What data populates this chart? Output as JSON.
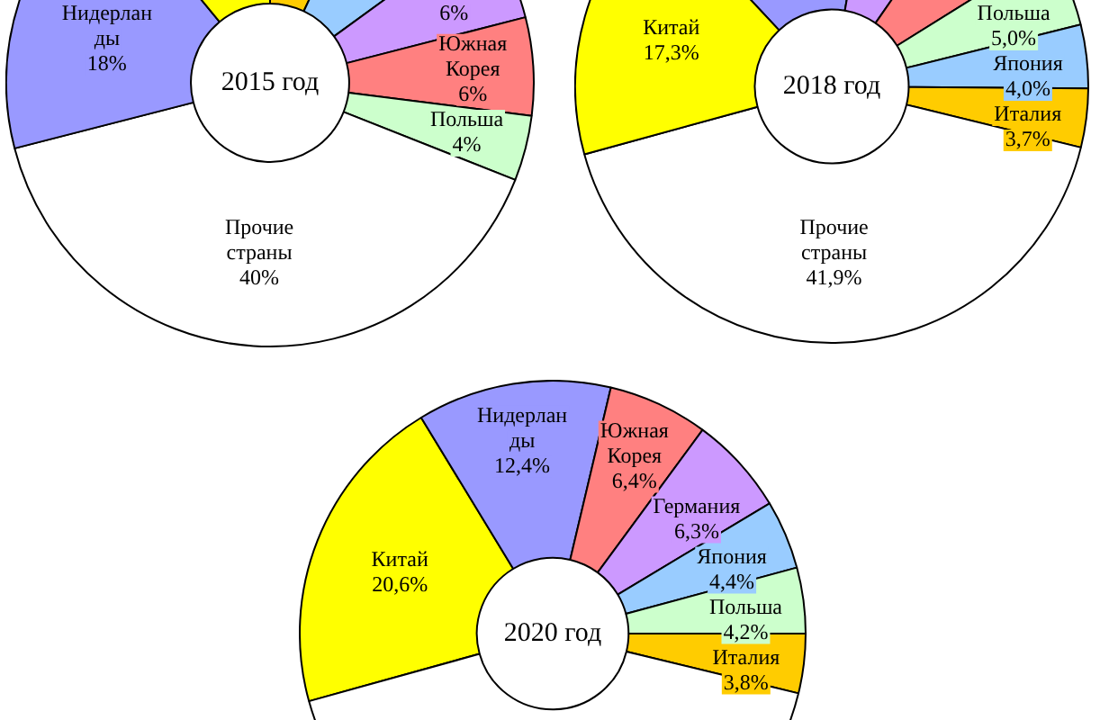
{
  "chart_data": [
    {
      "type": "donut",
      "title": "2015 год",
      "categories": [
        null,
        null,
        null,
        "Южная Корея",
        "Польша",
        "Прочие страны",
        "Нидерланды",
        null
      ],
      "values": [
        7,
        8,
        6,
        6,
        4,
        40,
        18,
        11
      ],
      "colors": [
        "#ffcc00",
        "#99ccff",
        "#cc99ff",
        "#ff8080",
        "#ccffcc",
        "#ffffff",
        "#9999ff",
        "#ffff00"
      ],
      "value_labels": [
        null,
        null,
        "6%",
        "6%",
        "4%",
        "40%",
        "18%",
        null
      ]
    },
    {
      "type": "donut",
      "title": "2018 год",
      "categories": [
        null,
        null,
        null,
        "Польша",
        "Япония",
        "Италия",
        "Прочие страны",
        "Китай"
      ],
      "values": [
        14.7,
        6.9,
        6.5,
        5.0,
        4.0,
        3.7,
        41.9,
        17.3
      ],
      "colors": [
        "#9999ff",
        "#cc99ff",
        "#ff8080",
        "#ccffcc",
        "#99ccff",
        "#ffcc00",
        "#ffffff",
        "#ffff00"
      ],
      "value_labels": [
        null,
        null,
        null,
        "5,0%",
        "4,0%",
        "3,7%",
        "41,9%",
        "17,3%"
      ]
    },
    {
      "type": "donut",
      "title": "2020 год",
      "categories": [
        "Китай",
        "Нидерланды",
        "Южная Корея",
        "Германия",
        "Япония",
        "Польша",
        "Италия",
        null
      ],
      "values": [
        20.6,
        12.4,
        6.4,
        6.3,
        4.4,
        4.2,
        3.8,
        41.9
      ],
      "colors": [
        "#ffff00",
        "#9999ff",
        "#ff8080",
        "#cc99ff",
        "#99ccff",
        "#ccffcc",
        "#ffcc00",
        "#ffffff"
      ],
      "value_labels": [
        "20,6%",
        "12,4%",
        "6,4%",
        "6,3%",
        "4,4%",
        "4,2%",
        "3,8%",
        null
      ]
    }
  ]
}
